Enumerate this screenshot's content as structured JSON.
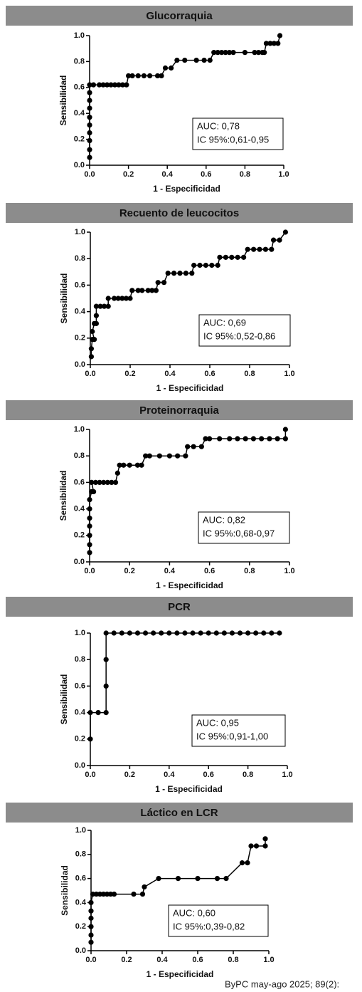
{
  "chart_data": [
    {
      "type": "line",
      "title": "Glucorraquia",
      "xlabel": "1 - Especificidad",
      "ylabel": "Sensibilidad",
      "color": "#000000",
      "annotations": [
        "AUC: 0,78",
        "IC 95%:0,61-0,95"
      ],
      "x": [
        0,
        0,
        0,
        0,
        0,
        0,
        0,
        0,
        0,
        0,
        0.02,
        0.05,
        0.07,
        0.09,
        0.11,
        0.13,
        0.15,
        0.17,
        0.19,
        0.2,
        0.22,
        0.25,
        0.28,
        0.31,
        0.35,
        0.37,
        0.39,
        0.42,
        0.45,
        0.49,
        0.55,
        0.59,
        0.62,
        0.64,
        0.66,
        0.68,
        0.7,
        0.72,
        0.74,
        0.8,
        0.85,
        0.87,
        0.89,
        0.9,
        0.91,
        0.93,
        0.95,
        0.97,
        0.98
      ],
      "values": [
        0.06,
        0.12,
        0.19,
        0.25,
        0.31,
        0.37,
        0.44,
        0.5,
        0.56,
        0.62,
        0.62,
        0.62,
        0.62,
        0.62,
        0.62,
        0.62,
        0.62,
        0.62,
        0.62,
        0.69,
        0.69,
        0.69,
        0.69,
        0.69,
        0.69,
        0.69,
        0.75,
        0.75,
        0.81,
        0.81,
        0.81,
        0.81,
        0.81,
        0.87,
        0.87,
        0.87,
        0.87,
        0.87,
        0.87,
        0.87,
        0.87,
        0.87,
        0.87,
        0.87,
        0.94,
        0.94,
        0.94,
        0.94,
        1.0
      ],
      "xlim": [
        0,
        1
      ],
      "ylim": [
        0,
        1
      ],
      "xticks": [
        {
          "value": 0,
          "label": "0.0"
        },
        0.2,
        0.4,
        0.6,
        0.8,
        {
          "value": 1,
          "label": "1.0"
        }
      ],
      "yticks": [
        {
          "value": 0,
          "label": "0.0"
        },
        0.2,
        0.4,
        0.6,
        0.8,
        {
          "value": 1,
          "label": "1.0"
        }
      ]
    },
    {
      "type": "line",
      "title": "Recuento de leucocitos",
      "xlabel": "1 - Especificidad",
      "ylabel": "Sensibilidad",
      "color": "#000000",
      "annotations": [
        "AUC: 0,69",
        "IC 95%:0,52-0,86"
      ],
      "x": [
        0.005,
        0.005,
        0.01,
        0.02,
        0.01,
        0.02,
        0.03,
        0.03,
        0.03,
        0.05,
        0.07,
        0.09,
        0.09,
        0.12,
        0.14,
        0.16,
        0.18,
        0.2,
        0.21,
        0.24,
        0.26,
        0.29,
        0.31,
        0.33,
        0.34,
        0.37,
        0.39,
        0.42,
        0.45,
        0.48,
        0.51,
        0.52,
        0.55,
        0.58,
        0.61,
        0.64,
        0.65,
        0.68,
        0.71,
        0.74,
        0.77,
        0.79,
        0.82,
        0.85,
        0.88,
        0.91,
        0.92,
        0.95,
        0.98
      ],
      "values": [
        0.06,
        0.12,
        0.19,
        0.19,
        0.25,
        0.31,
        0.31,
        0.37,
        0.44,
        0.44,
        0.44,
        0.44,
        0.5,
        0.5,
        0.5,
        0.5,
        0.5,
        0.5,
        0.56,
        0.56,
        0.56,
        0.56,
        0.56,
        0.56,
        0.62,
        0.62,
        0.69,
        0.69,
        0.69,
        0.69,
        0.69,
        0.75,
        0.75,
        0.75,
        0.75,
        0.75,
        0.81,
        0.81,
        0.81,
        0.81,
        0.81,
        0.87,
        0.87,
        0.87,
        0.87,
        0.87,
        0.94,
        0.94,
        1.0
      ],
      "xlim": [
        0,
        1
      ],
      "ylim": [
        0,
        1
      ],
      "xticks": [
        {
          "value": 0,
          "label": "0.0"
        },
        0.2,
        0.4,
        0.6,
        0.8,
        {
          "value": 1,
          "label": "1.0"
        }
      ],
      "yticks": [
        {
          "value": 0,
          "label": "0.0"
        },
        0.2,
        0.4,
        0.6,
        0.8,
        {
          "value": 1,
          "label": "1.0"
        }
      ]
    },
    {
      "type": "line",
      "title": "Proteinorraquia",
      "xlabel": "1 - Especificidad",
      "ylabel": "Sensibilidad",
      "color": "#000000",
      "annotations": [
        "AUC: 0,82",
        "IC 95%:0,68-0,97"
      ],
      "x": [
        0,
        0,
        0,
        0,
        0,
        0,
        0,
        0.01,
        0.02,
        0.01,
        0.03,
        0.05,
        0.07,
        0.09,
        0.11,
        0.13,
        0.14,
        0.15,
        0.17,
        0.2,
        0.24,
        0.26,
        0.28,
        0.3,
        0.35,
        0.4,
        0.44,
        0.48,
        0.49,
        0.52,
        0.56,
        0.58,
        0.6,
        0.65,
        0.7,
        0.74,
        0.78,
        0.82,
        0.86,
        0.9,
        0.94,
        0.98,
        0.98
      ],
      "values": [
        0.07,
        0.13,
        0.2,
        0.27,
        0.33,
        0.4,
        0.47,
        0.53,
        0.53,
        0.6,
        0.6,
        0.6,
        0.6,
        0.6,
        0.6,
        0.6,
        0.67,
        0.73,
        0.73,
        0.73,
        0.73,
        0.73,
        0.8,
        0.8,
        0.8,
        0.8,
        0.8,
        0.8,
        0.87,
        0.87,
        0.87,
        0.93,
        0.93,
        0.93,
        0.93,
        0.93,
        0.93,
        0.93,
        0.93,
        0.93,
        0.93,
        0.93,
        1.0
      ],
      "xlim": [
        0,
        1
      ],
      "ylim": [
        0,
        1
      ],
      "xticks": [
        {
          "value": 0,
          "label": "0.0"
        },
        0.2,
        0.4,
        0.6,
        0.8,
        {
          "value": 1,
          "label": "1.0"
        }
      ],
      "yticks": [
        {
          "value": 0,
          "label": "0.0"
        },
        0.2,
        0.4,
        0.6,
        0.8,
        {
          "value": 1,
          "label": "1.0"
        }
      ]
    },
    {
      "type": "line",
      "title": "PCR",
      "xlabel": "1 - Especificidad",
      "ylabel": "Sensibilidad",
      "color": "#000000",
      "annotations": [
        "AUC: 0,95",
        "IC 95%:0,91-1,00"
      ],
      "x": [
        0,
        0,
        0.04,
        0.08,
        0.08,
        0.08,
        0.08,
        0.12,
        0.16,
        0.2,
        0.24,
        0.28,
        0.32,
        0.36,
        0.4,
        0.44,
        0.48,
        0.52,
        0.56,
        0.6,
        0.64,
        0.68,
        0.72,
        0.76,
        0.8,
        0.84,
        0.88,
        0.92,
        0.96
      ],
      "values": [
        0.2,
        0.4,
        0.4,
        0.4,
        0.6,
        0.8,
        1.0,
        1.0,
        1.0,
        1.0,
        1.0,
        1.0,
        1.0,
        1.0,
        1.0,
        1.0,
        1.0,
        1.0,
        1.0,
        1.0,
        1.0,
        1.0,
        1.0,
        1.0,
        1.0,
        1.0,
        1.0,
        1.0,
        1.0
      ],
      "xlim": [
        0,
        1
      ],
      "ylim": [
        0,
        1
      ],
      "xticks": [
        {
          "value": 0,
          "label": "0.0"
        },
        0.2,
        0.4,
        0.6,
        0.8,
        {
          "value": 1,
          "label": "1.0"
        }
      ],
      "yticks": [
        {
          "value": 0,
          "label": "0.0"
        },
        0.2,
        0.4,
        0.6,
        0.8,
        {
          "value": 1,
          "label": "1.0"
        }
      ]
    },
    {
      "type": "line",
      "title": "Láctico en LCR",
      "xlabel": "1 - Especificidad",
      "ylabel": "Sensibilidad",
      "color": "#000000",
      "annotations": [
        "AUC: 0,60",
        "IC 95%:0,39-0,82"
      ],
      "x": [
        0,
        0,
        0,
        0,
        0,
        0,
        0.01,
        0.03,
        0.05,
        0.07,
        0.09,
        0.11,
        0.13,
        0.24,
        0.29,
        0.3,
        0.38,
        0.49,
        0.6,
        0.71,
        0.76,
        0.85,
        0.88,
        0.9,
        0.93,
        0.98,
        0.98
      ],
      "values": [
        0.07,
        0.13,
        0.2,
        0.27,
        0.33,
        0.4,
        0.47,
        0.47,
        0.47,
        0.47,
        0.47,
        0.47,
        0.47,
        0.47,
        0.47,
        0.53,
        0.6,
        0.6,
        0.6,
        0.6,
        0.6,
        0.73,
        0.73,
        0.87,
        0.87,
        0.87,
        0.93
      ],
      "xlim": [
        0,
        1
      ],
      "ylim": [
        0,
        1
      ],
      "xticks": [
        {
          "value": 0,
          "label": "0.0"
        },
        0.2,
        0.4,
        0.6,
        0.8,
        {
          "value": 1,
          "label": "1.0"
        }
      ],
      "yticks": [
        {
          "value": 0,
          "label": "0.0"
        },
        0.2,
        0.4,
        0.6,
        0.8,
        {
          "value": 1,
          "label": "1.0"
        }
      ]
    }
  ],
  "footer": "ByPC may-ago 2025; 89(2):"
}
